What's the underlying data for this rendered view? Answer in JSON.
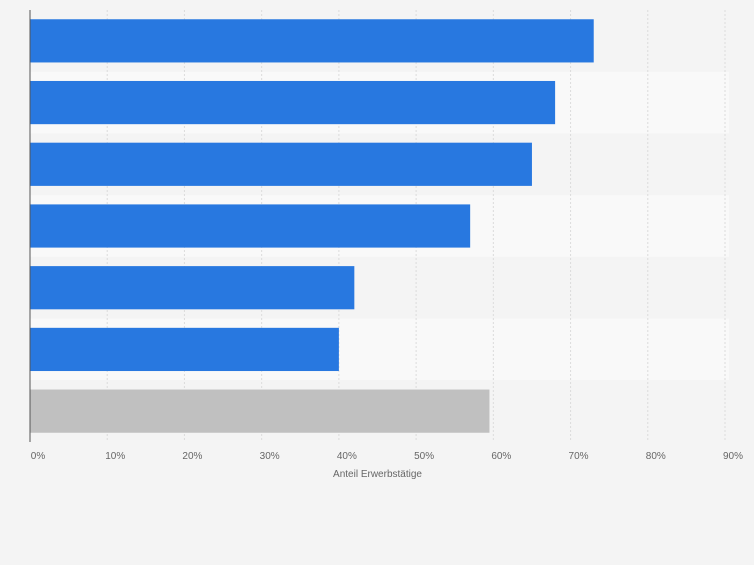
{
  "chart_data": {
    "type": "bar",
    "orientation": "horizontal",
    "categories": [
      "",
      "",
      "",
      "",
      "",
      "",
      ""
    ],
    "values": [
      73,
      68,
      65,
      57,
      42,
      40,
      59.5
    ],
    "highlight_index": 6,
    "xlabel": "Anteil Erwerbstätige",
    "ylabel": "",
    "xlim": [
      0,
      90
    ],
    "x_ticks": [
      0,
      10,
      20,
      30,
      40,
      50,
      60,
      70,
      80,
      90
    ],
    "x_tick_labels": [
      "0%",
      "10%",
      "20%",
      "30%",
      "40%",
      "50%",
      "60%",
      "70%",
      "80%",
      "90%"
    ],
    "grid": true,
    "legend": "none"
  },
  "colors": {
    "bar": "#2878e0",
    "bar_highlight": "#c0c0c0",
    "band_light": "#f9f9f9",
    "band_dark": "#f4f4f4",
    "grid": "#dcdcdc",
    "axis": "#555555",
    "tick_text": "#666666"
  }
}
